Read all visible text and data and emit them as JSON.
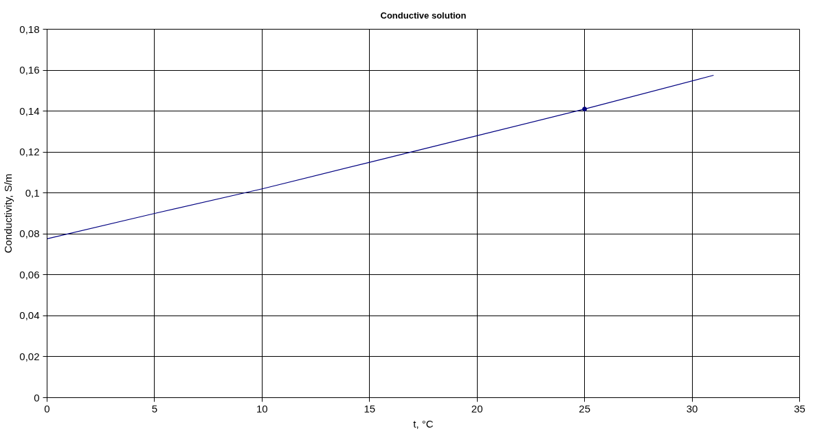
{
  "chart_data": {
    "type": "line",
    "title": "Conductive solution",
    "xlabel": "t, °C",
    "ylabel": "Conductivity, S/m",
    "series": [
      {
        "color": "#000080",
        "x": [
          0,
          5,
          10,
          15,
          20,
          25,
          31
        ],
        "values": [
          0.0776,
          0.09,
          0.102,
          0.115,
          0.128,
          0.141,
          0.1575
        ],
        "marker": "none"
      },
      {
        "type": "scatter",
        "color": "#000080",
        "x": [
          25
        ],
        "values": [
          0.141
        ],
        "marker": "circle"
      }
    ],
    "xlim": [
      0,
      35
    ],
    "xticks": [
      0,
      5,
      10,
      15,
      20,
      25,
      30,
      35
    ],
    "ylim": [
      0,
      0.18
    ],
    "yticks": [
      0,
      {
        "value": 0.02,
        "label": "0,02"
      },
      {
        "value": 0.04,
        "label": "0,04"
      },
      {
        "value": 0.06,
        "label": "0,06"
      },
      {
        "value": 0.08,
        "label": "0,08"
      },
      {
        "value": 0.1,
        "label": "0,1"
      },
      {
        "value": 0.12,
        "label": "0,12"
      },
      {
        "value": 0.14,
        "label": "0,14"
      },
      {
        "value": 0.16,
        "label": "0,16"
      },
      {
        "value": 0.18,
        "label": "0,18"
      }
    ],
    "grid": true
  }
}
